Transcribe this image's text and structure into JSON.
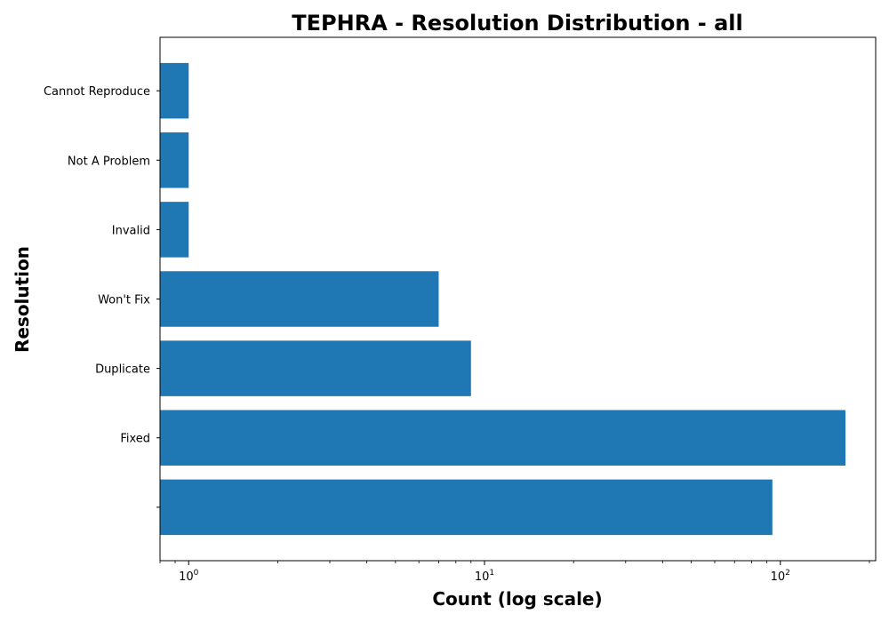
{
  "chart_data": {
    "type": "bar",
    "orientation": "horizontal",
    "title": "TEPHRA - Resolution Distribution - all",
    "xlabel": "Count (log scale)",
    "ylabel": "Resolution",
    "xscale": "log",
    "xlim": [
      0.8,
      210
    ],
    "x_tick_labels": [
      {
        "value": 1,
        "base": "10",
        "exp": "0"
      },
      {
        "value": 10,
        "base": "10",
        "exp": "1"
      },
      {
        "value": 100,
        "base": "10",
        "exp": "2"
      }
    ],
    "categories": [
      "",
      "Fixed",
      "Duplicate",
      "Won't Fix",
      "Invalid",
      "Not A Problem",
      "Cannot Reproduce"
    ],
    "values": [
      94,
      166,
      9,
      7,
      1,
      1,
      1
    ],
    "bar_color": "#1f77b4",
    "grid": false,
    "legend": "none"
  }
}
